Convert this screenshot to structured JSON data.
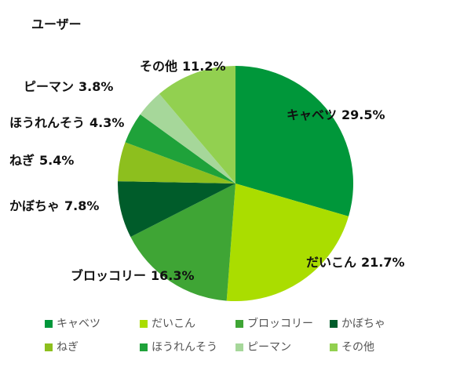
{
  "chart_data": {
    "type": "pie",
    "title": "ユーザー",
    "categories": [
      "キャベツ",
      "だいこん",
      "ブロッコリー",
      "かぼちゃ",
      "ねぎ",
      "ほうれんそう",
      "ピーマン",
      "その他"
    ],
    "values": [
      29.5,
      21.7,
      16.3,
      7.8,
      5.4,
      4.3,
      3.8,
      11.2
    ],
    "value_labels": [
      "29.5%",
      "21.7%",
      "16.3%",
      "7.8%",
      "5.4%",
      "4.3%",
      "3.8%",
      "11.2%"
    ],
    "colors": [
      "#00973a",
      "#aadd00",
      "#3fa535",
      "#005c2a",
      "#8dbf1e",
      "#1fa23a",
      "#a6d79a",
      "#92d050"
    ],
    "legend": "bottom"
  }
}
